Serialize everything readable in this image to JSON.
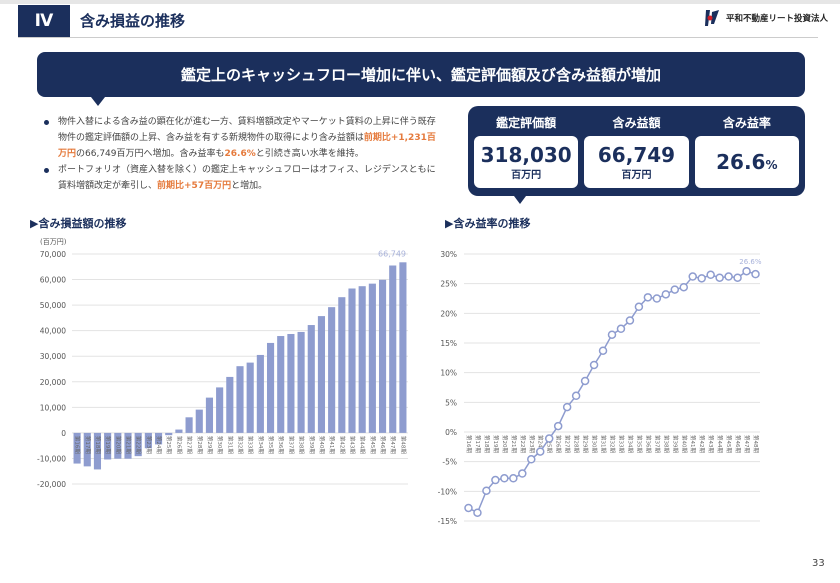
{
  "header": {
    "section_no": "Ⅳ",
    "title": "含み損益の推移",
    "company": "平和不動産リート投資法人"
  },
  "banner": "鑑定上のキャッシュフロー増加に伴い、鑑定評価額及び含み益額が増加",
  "bullets": [
    {
      "t1": "物件入替による含み益の顕在化が進む一方、賃料増額改定やマーケット賃料の上昇に伴う既存物件の鑑定評価額の上昇、含み益を有する新規物件の取得により含み益額は",
      "h1": "前期比+1,231百万円",
      "t2": "の66,749百万円へ増加。含み益率も",
      "h2": "26.6%",
      "t3": "と引続き高い水準を維持。"
    },
    {
      "t1": "ポートフォリオ（資産入替を除く）の鑑定上キャッシュフローはオフィス、レジデンスともに賃料増額改定が牽引し、",
      "h1": "前期比+57百万円",
      "t2": "と増加。"
    }
  ],
  "stats": [
    {
      "label": "鑑定評価額",
      "value": "318,030",
      "unit": "百万円"
    },
    {
      "label": "含み益額",
      "value": "66,749",
      "unit": "百万円"
    },
    {
      "label": "含み益率",
      "value": "26.6",
      "unit": "%"
    }
  ],
  "page_number": "33",
  "colors": {
    "navy": "#1b2f5c",
    "bar": "#8e9ccf",
    "accent": "#e57a3c"
  },
  "chart_data": [
    {
      "type": "bar",
      "title": "▶含み損益額の推移",
      "ylabel": "(百万円)",
      "ylim": [
        -20000,
        70000
      ],
      "yticks": [
        "70,000",
        "60,000",
        "50,000",
        "40,000",
        "30,000",
        "20,000",
        "10,000",
        "0",
        "-10,000",
        "-20,000"
      ],
      "categories": [
        "第16期",
        "第17期",
        "第18期",
        "第19期",
        "第20期",
        "第21期",
        "第22期",
        "第23期",
        "第24期",
        "第25期",
        "第26期",
        "第27期",
        "第28期",
        "第29期",
        "第30期",
        "第31期",
        "第32期",
        "第33期",
        "第34期",
        "第35期",
        "第36期",
        "第37期",
        "第38期",
        "第39期",
        "第40期",
        "第41期",
        "第42期",
        "第43期",
        "第44期",
        "第45期",
        "第46期",
        "第47期",
        "第48期"
      ],
      "values": [
        -12000,
        -13100,
        -14300,
        -10400,
        -10100,
        -10100,
        -9100,
        -6000,
        -4500,
        -900,
        1300,
        6100,
        9100,
        13800,
        17800,
        21900,
        26100,
        27500,
        30500,
        35200,
        37900,
        38700,
        39500,
        42200,
        45700,
        49200,
        53100,
        56500,
        57400,
        58400,
        59900,
        65500,
        66749
      ],
      "data_label": "66,749"
    },
    {
      "type": "line",
      "title": "▶含み益率の推移",
      "ylim": [
        -15,
        30
      ],
      "yticks": [
        "30%",
        "25%",
        "20%",
        "15%",
        "10%",
        "5%",
        "0%",
        "-5%",
        "-10%",
        "-15%"
      ],
      "categories": [
        "第16期",
        "第17期",
        "第18期",
        "第19期",
        "第20期",
        "第21期",
        "第22期",
        "第23期",
        "第24期",
        "第25期",
        "第26期",
        "第27期",
        "第28期",
        "第29期",
        "第30期",
        "第31期",
        "第32期",
        "第33期",
        "第34期",
        "第35期",
        "第36期",
        "第37期",
        "第38期",
        "第39期",
        "第40期",
        "第41期",
        "第42期",
        "第43期",
        "第44期",
        "第45期",
        "第46期",
        "第47期",
        "第48期"
      ],
      "values": [
        -12.8,
        -13.6,
        -9.9,
        -8.1,
        -7.8,
        -7.8,
        -7.0,
        -4.6,
        -3.3,
        -1.1,
        1.0,
        4.2,
        6.1,
        8.6,
        11.3,
        13.7,
        16.4,
        17.4,
        18.8,
        21.1,
        22.7,
        22.5,
        23.2,
        24.0,
        24.4,
        26.2,
        25.9,
        26.5,
        26.0,
        26.2,
        26.0,
        27.1,
        26.6
      ],
      "data_label": "26.6%"
    }
  ]
}
